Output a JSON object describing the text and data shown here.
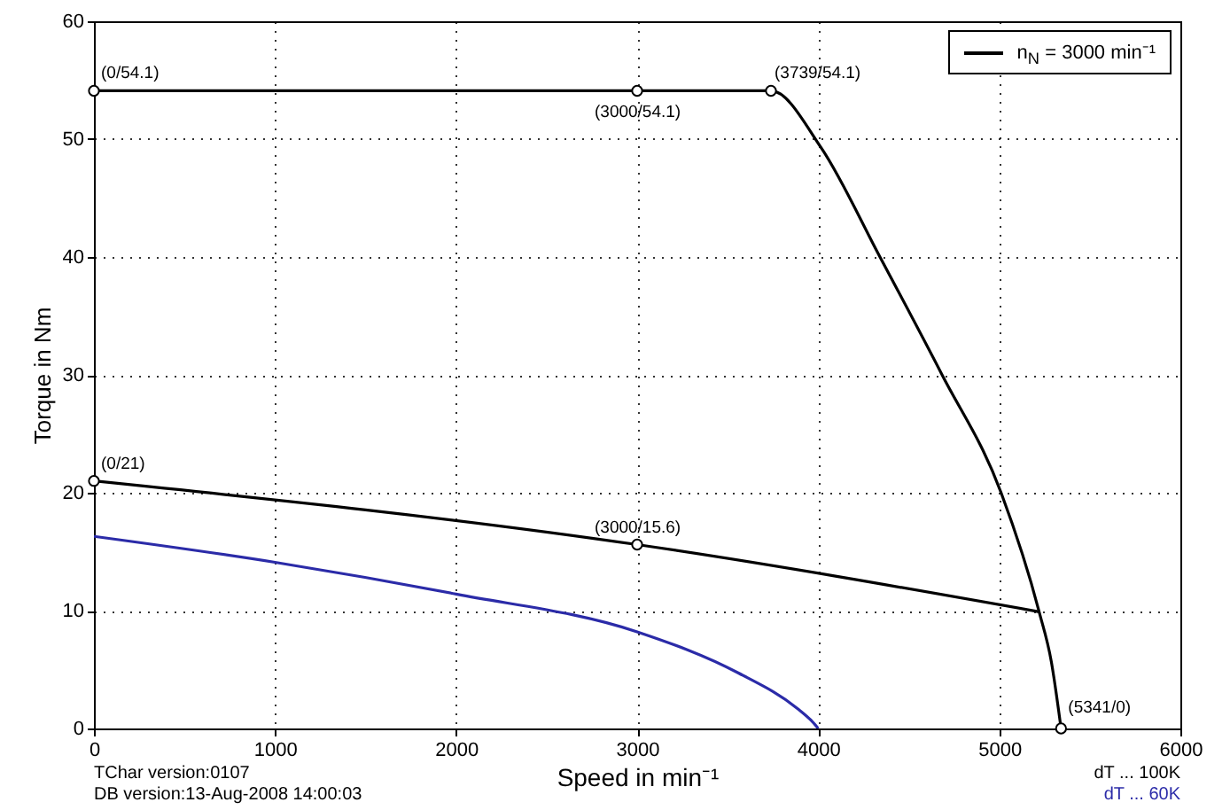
{
  "chart_data": {
    "type": "line",
    "xlabel": "Speed in min⁻¹",
    "ylabel": "Torque in Nm",
    "xlim": [
      0,
      6000
    ],
    "xticks": [
      0,
      1000,
      2000,
      3000,
      4000,
      5000,
      6000
    ],
    "ylim": [
      0,
      60
    ],
    "yticks": [
      0,
      10,
      20,
      30,
      40,
      50,
      60
    ],
    "grid": true,
    "legend": "top right",
    "line_style": "solid",
    "series": [
      {
        "name": "n$_{N}$ = 3000 min⁻¹",
        "color": "#000000",
        "x": [
          0,
          3000,
          3739,
          4015,
          4341,
          4684,
          5010,
          5220,
          5287,
          5341
        ],
        "values": [
          54.1,
          54.1,
          54.1,
          49.3,
          40,
          30,
          20,
          9.9,
          5.7,
          0
        ]
      },
      {
        "color": "#000000",
        "x": [
          0,
          3000,
          5220
        ],
        "values": [
          21,
          15.6,
          9.9
        ]
      },
      {
        "color": "#2b2ba8",
        "x": [
          0,
          1000,
          2000,
          3000,
          3560,
          3885,
          3960,
          4000
        ],
        "values": [
          16.3,
          14.1,
          11.4,
          8.2,
          4.7,
          1.7,
          0.7,
          0
        ]
      },
      {
        "type": "scatter",
        "marker": "circle",
        "color": "#000000",
        "x": [
          0,
          3000,
          3739,
          0,
          3000,
          5341
        ],
        "values": [
          54.1,
          54.1,
          54.1,
          21,
          15.6,
          0
        ]
      }
    ],
    "annotations": [
      {
        "text": "(0/54.1)",
        "x": 0,
        "y": 54.1
      },
      {
        "text": "(3000/54.1)",
        "x": 3000,
        "y": 54.1
      },
      {
        "text": "(3739/54.1)",
        "x": 3739,
        "y": 54.1
      },
      {
        "text": "(0/21)",
        "x": 0,
        "y": 21
      },
      {
        "text": "(3000/15.6)",
        "x": 3000,
        "y": 15.6
      },
      {
        "text": "(5341/0)",
        "x": 5341,
        "y": 0
      },
      "TChar version:0107",
      "DB version:13-Aug-2008 14:00:03",
      "dT ... 100K",
      "dT ... 60K"
    ]
  }
}
